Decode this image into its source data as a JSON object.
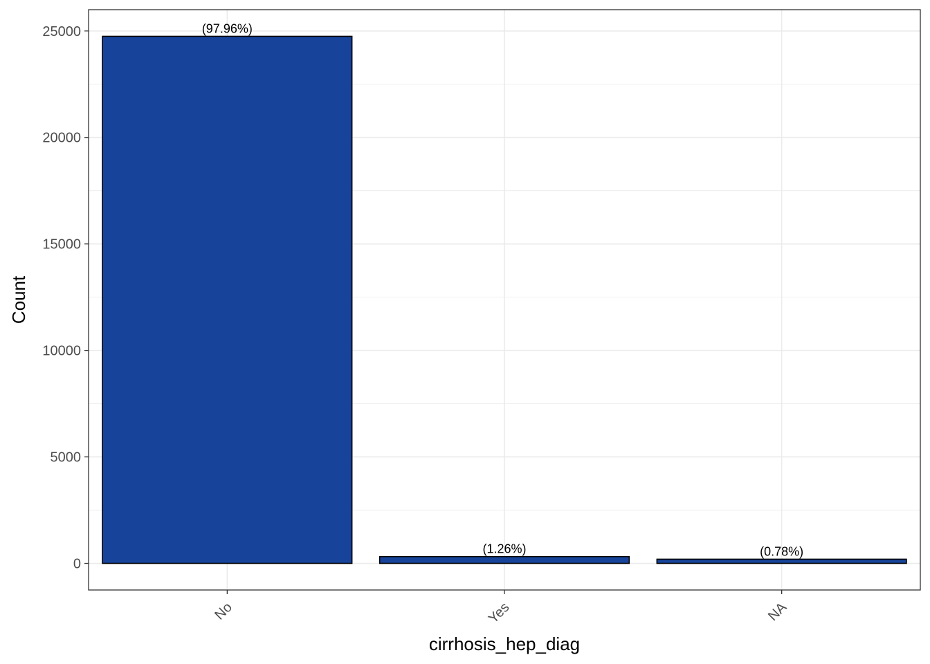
{
  "chart_data": {
    "type": "bar",
    "categories": [
      "No",
      "Yes",
      "NA"
    ],
    "values": [
      24750,
      318,
      197
    ],
    "data_labels": [
      "(97.96%)",
      "(1.26%)",
      "(0.78%)"
    ],
    "title": "",
    "xlabel": "cirrhosis_hep_diag",
    "ylabel": "Count",
    "ylim": [
      -1250,
      26000
    ],
    "yticks": [
      0,
      5000,
      10000,
      15000,
      20000,
      25000
    ],
    "ytick_labels": [
      "0",
      "5000",
      "10000",
      "15000",
      "20000",
      "25000"
    ],
    "x_tick_rotation": 45,
    "grid": true,
    "legend": "none",
    "colors": {
      "bar_fill": "#17449A",
      "bar_stroke": "#000000",
      "grid": "#ebebeb",
      "panel_border": "#333333"
    }
  }
}
